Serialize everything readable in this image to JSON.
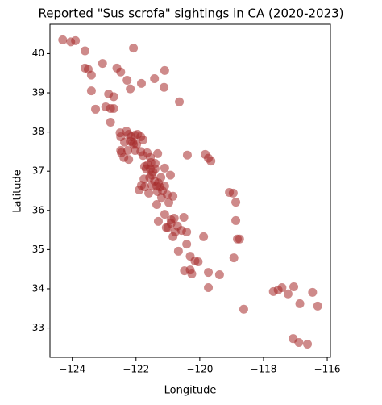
{
  "chart_data": {
    "type": "scatter",
    "title": "Reported \"Sus scrofa\" sightings in CA (2020-2023)",
    "x_label": "Longitude",
    "y_label": "Latitude",
    "color": "#a52a2a",
    "alpha": 0.55,
    "xlim": [
      -124.7,
      -115.9
    ],
    "ylim": [
      32.25,
      40.75
    ],
    "xticks": [
      {
        "value": -124,
        "label": "−124"
      },
      {
        "value": -122,
        "label": "−122"
      },
      {
        "value": -120,
        "label": "−120"
      },
      {
        "value": -118,
        "label": "−118"
      },
      {
        "value": -116,
        "label": "−116"
      }
    ],
    "yticks": [
      33,
      34,
      35,
      36,
      37,
      38,
      39,
      40
    ],
    "x": [
      -124.3,
      -124.05,
      -123.9,
      -123.6,
      -123.6,
      -123.5,
      -123.4,
      -123.05,
      -123.4,
      -123.27,
      -122.86,
      -122.7,
      -122.6,
      -122.48,
      -122.8,
      -122.7,
      -122.95,
      -122.8,
      -122.18,
      -122.28,
      -122.08,
      -121.83,
      -121.42,
      -121.1,
      -121.12,
      -120.64,
      -122.5,
      -122.48,
      -122.3,
      -122.23,
      -122.15,
      -122.03,
      -121.95,
      -121.85,
      -121.78,
      -122.1,
      -122.18,
      -122.08,
      -121.98,
      -122.36,
      -122.48,
      -122.46,
      -122.26,
      -122.03,
      -122.38,
      -122.23,
      -121.85,
      -121.78,
      -121.65,
      -121.55,
      -121.53,
      -121.63,
      -121.32,
      -121.73,
      -121.55,
      -121.47,
      -121.4,
      -121.1,
      -120.92,
      -121.75,
      -121.83,
      -121.73,
      -121.9,
      -121.6,
      -121.5,
      -121.3,
      -121.25,
      -121.1,
      -121.17,
      -121.33,
      -121.02,
      -121.2,
      -121.35,
      -120.84,
      -120.97,
      -121.3,
      -121.1,
      -120.8,
      -120.9,
      -120.5,
      -121.0,
      -120.77,
      -120.84,
      -120.57,
      -120.41,
      -120.67,
      -120.41,
      -120.3,
      -120.15,
      -120.05,
      -120.48,
      -120.3,
      -120.25,
      -119.73,
      -119.73,
      -119.38,
      -119.88,
      -120.39,
      -119.83,
      -119.73,
      -119.65,
      -119.07,
      -118.95,
      -118.87,
      -118.87,
      -118.82,
      -118.93,
      -118.75,
      -118.62,
      -117.69,
      -117.54,
      -117.42,
      -117.23,
      -117.05,
      -116.86,
      -116.46,
      -116.3,
      -117.07,
      -116.89,
      -116.62,
      -121.68,
      -121.5,
      -121.42,
      -121.35,
      -121.57,
      -121.22,
      -121.4,
      -120.9,
      -121.05,
      -120.7
    ],
    "y": [
      40.35,
      40.3,
      40.33,
      40.07,
      39.63,
      39.6,
      39.45,
      39.75,
      39.05,
      38.58,
      38.97,
      38.9,
      39.63,
      39.53,
      38.6,
      38.6,
      38.64,
      38.25,
      39.1,
      39.32,
      40.14,
      39.24,
      39.36,
      39.57,
      39.14,
      38.77,
      37.98,
      37.88,
      38.02,
      37.94,
      37.88,
      37.92,
      37.94,
      37.88,
      37.8,
      37.74,
      37.76,
      37.68,
      37.68,
      37.74,
      37.53,
      37.47,
      37.53,
      37.53,
      37.35,
      37.3,
      37.5,
      37.4,
      37.47,
      37.35,
      37.22,
      37.16,
      37.45,
      37.12,
      37.06,
      36.98,
      37.06,
      37.08,
      36.9,
      36.8,
      36.64,
      36.6,
      36.52,
      36.44,
      36.64,
      36.7,
      36.6,
      36.62,
      36.5,
      36.48,
      36.4,
      36.33,
      36.15,
      36.36,
      36.2,
      35.72,
      35.9,
      35.8,
      35.76,
      35.82,
      35.56,
      35.45,
      35.33,
      35.49,
      35.45,
      34.96,
      35.14,
      34.83,
      34.71,
      34.69,
      34.46,
      34.48,
      34.38,
      34.42,
      34.03,
      34.36,
      35.33,
      37.41,
      37.43,
      37.33,
      37.26,
      36.46,
      36.44,
      36.21,
      35.74,
      35.27,
      34.79,
      35.27,
      33.48,
      33.93,
      33.97,
      34.03,
      33.87,
      34.05,
      33.62,
      33.91,
      33.56,
      32.73,
      32.63,
      32.59,
      37.06,
      36.9,
      36.75,
      36.62,
      36.84,
      36.84,
      37.2,
      35.67,
      35.56,
      35.6
    ]
  }
}
